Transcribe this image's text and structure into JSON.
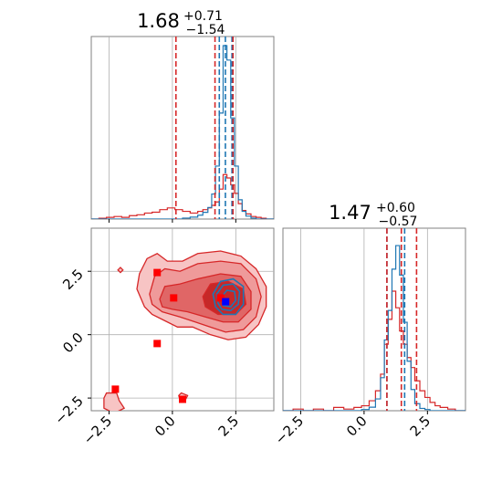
{
  "chart_data": {
    "type": "corner",
    "grid": true,
    "colors": {
      "primary": "#d62728",
      "secondary": "#1f77b4",
      "marker_primary": "#ff0000",
      "marker_secondary": "#0000ff",
      "grid": "#b0b0b0"
    },
    "parameters": [
      {
        "title": {
          "median": "1.68",
          "plus": "+0.71",
          "minus": "−1.54"
        }
      },
      {
        "title": {
          "median": "1.47",
          "plus": "+0.60",
          "minus": "−0.57"
        }
      }
    ],
    "xlim": [
      -3.2,
      4.0
    ],
    "ylim": [
      -3.0,
      4.2
    ],
    "ticks": [
      -2.5,
      0.0,
      2.5
    ],
    "tick_labels": [
      "−2.5",
      "0.0",
      "2.5"
    ],
    "marginal_1": {
      "bin_edges": [
        -3.2,
        -2.9,
        -2.6,
        -2.3,
        -2.0,
        -1.7,
        -1.4,
        -1.1,
        -0.8,
        -0.5,
        -0.2,
        0.1,
        0.4,
        0.7,
        1.0,
        1.2,
        1.4,
        1.55,
        1.7,
        1.85,
        2.0,
        2.15,
        2.3,
        2.45,
        2.6,
        2.75,
        2.9,
        3.1,
        3.3,
        3.5,
        3.7,
        4.0
      ],
      "red_counts": [
        0,
        1,
        2,
        3,
        2,
        4,
        5,
        7,
        8,
        11,
        13,
        11,
        9,
        7,
        9,
        11,
        13,
        16,
        20,
        35,
        52,
        48,
        40,
        30,
        18,
        10,
        6,
        3,
        2,
        1,
        0
      ],
      "blue_counts": [
        0,
        0,
        0,
        0,
        0,
        0,
        0,
        0,
        0,
        0,
        0,
        0,
        1,
        2,
        4,
        7,
        12,
        26,
        55,
        110,
        180,
        165,
        105,
        55,
        20,
        8,
        3,
        1,
        0,
        0,
        0
      ],
      "red_quantiles": [
        0.14,
        1.68,
        2.39
      ],
      "blue_quantiles": [
        1.85,
        2.09,
        2.35
      ]
    },
    "marginal_2": {
      "bin_edges": [
        -3.2,
        -2.8,
        -2.4,
        -2.0,
        -1.6,
        -1.2,
        -0.8,
        -0.4,
        -0.1,
        0.2,
        0.45,
        0.65,
        0.8,
        0.95,
        1.1,
        1.25,
        1.4,
        1.55,
        1.7,
        1.85,
        2.0,
        2.2,
        2.4,
        2.6,
        2.8,
        3.0,
        3.3,
        3.6,
        4.0
      ],
      "red_counts": [
        0,
        1,
        0,
        1,
        0,
        2,
        1,
        2,
        3,
        6,
        12,
        22,
        40,
        55,
        72,
        62,
        48,
        40,
        32,
        26,
        18,
        12,
        8,
        5,
        3,
        2,
        1,
        0
      ],
      "blue_counts": [
        0,
        0,
        0,
        0,
        0,
        0,
        0,
        0,
        1,
        3,
        10,
        28,
        60,
        85,
        120,
        140,
        115,
        75,
        42,
        18,
        6,
        2,
        1,
        0,
        0,
        0,
        0,
        0
      ],
      "red_quantiles": [
        0.9,
        1.47,
        2.07
      ],
      "blue_quantiles": [
        0.9,
        1.6,
        null
      ]
    },
    "joint": {
      "red_contours": [
        [
          [
            -1.4,
            1.8
          ],
          [
            -1.3,
            2.4
          ],
          [
            -1.0,
            3.0
          ],
          [
            -0.6,
            3.2
          ],
          [
            -0.2,
            2.9
          ],
          [
            0.4,
            2.9
          ],
          [
            1.0,
            3.2
          ],
          [
            1.9,
            3.3
          ],
          [
            2.7,
            3.1
          ],
          [
            3.3,
            2.6
          ],
          [
            3.7,
            1.9
          ],
          [
            3.7,
            1.1
          ],
          [
            3.4,
            0.4
          ],
          [
            2.9,
            -0.1
          ],
          [
            2.2,
            -0.2
          ],
          [
            1.5,
            0.0
          ],
          [
            0.8,
            0.3
          ],
          [
            0.2,
            0.3
          ],
          [
            -0.4,
            0.6
          ],
          [
            -0.8,
            0.8
          ],
          [
            -1.1,
            1.1
          ]
        ],
        [
          [
            -0.9,
            1.6
          ],
          [
            -0.7,
            2.3
          ],
          [
            -0.3,
            2.6
          ],
          [
            0.3,
            2.5
          ],
          [
            1.0,
            2.8
          ],
          [
            1.9,
            2.9
          ],
          [
            2.7,
            2.8
          ],
          [
            3.3,
            2.2
          ],
          [
            3.5,
            1.5
          ],
          [
            3.3,
            0.7
          ],
          [
            2.8,
            0.2
          ],
          [
            2.1,
            0.1
          ],
          [
            1.5,
            0.3
          ],
          [
            0.9,
            0.5
          ],
          [
            0.3,
            0.7
          ],
          [
            -0.4,
            0.9
          ],
          [
            -0.8,
            1.2
          ]
        ],
        [
          [
            -0.5,
            1.4
          ],
          [
            -0.3,
            1.9
          ],
          [
            0.3,
            2.0
          ],
          [
            1.0,
            2.2
          ],
          [
            1.9,
            2.4
          ],
          [
            2.7,
            2.3
          ],
          [
            3.1,
            1.7
          ],
          [
            3.1,
            1.0
          ],
          [
            2.6,
            0.5
          ],
          [
            2.0,
            0.5
          ],
          [
            1.3,
            0.7
          ],
          [
            0.6,
            0.9
          ],
          [
            0.0,
            1.0
          ],
          [
            -0.4,
            1.1
          ]
        ],
        [
          [
            1.2,
            1.5
          ],
          [
            1.5,
            2.0
          ],
          [
            2.2,
            2.1
          ],
          [
            2.8,
            1.8
          ],
          [
            2.9,
            1.2
          ],
          [
            2.5,
            0.8
          ],
          [
            1.8,
            0.8
          ],
          [
            1.3,
            1.1
          ]
        ],
        [
          [
            -2.7,
            -2.5
          ],
          [
            -2.6,
            -2.3
          ],
          [
            -2.2,
            -2.3
          ],
          [
            -2.1,
            -2.6
          ],
          [
            -1.9,
            -2.9
          ],
          [
            -2.3,
            -3.1
          ],
          [
            -2.7,
            -2.9
          ]
        ],
        [
          [
            0.25,
            -2.4
          ],
          [
            0.35,
            -2.3
          ],
          [
            0.6,
            -2.4
          ],
          [
            0.5,
            -2.6
          ],
          [
            0.3,
            -2.6
          ]
        ],
        [
          [
            -2.15,
            2.55
          ],
          [
            -2.05,
            2.65
          ],
          [
            -1.95,
            2.55
          ],
          [
            -2.05,
            2.45
          ]
        ]
      ],
      "blue_contours": [
        [
          [
            1.6,
            1.6
          ],
          [
            1.9,
            2.1
          ],
          [
            2.4,
            2.2
          ],
          [
            2.8,
            1.9
          ],
          [
            2.8,
            1.2
          ],
          [
            2.5,
            0.8
          ],
          [
            2.0,
            0.8
          ],
          [
            1.7,
            1.1
          ]
        ],
        [
          [
            1.75,
            1.6
          ],
          [
            2.0,
            1.95
          ],
          [
            2.4,
            2.0
          ],
          [
            2.65,
            1.7
          ],
          [
            2.6,
            1.2
          ],
          [
            2.3,
            0.95
          ],
          [
            1.95,
            1.0
          ],
          [
            1.8,
            1.25
          ]
        ],
        [
          [
            1.95,
            1.5
          ],
          [
            2.15,
            1.75
          ],
          [
            2.45,
            1.7
          ],
          [
            2.5,
            1.35
          ],
          [
            2.3,
            1.1
          ],
          [
            2.0,
            1.15
          ]
        ]
      ],
      "red_markers": [
        [
          -0.6,
          2.45
        ],
        [
          0.05,
          1.45
        ],
        [
          -0.6,
          -0.35
        ],
        [
          -2.25,
          -2.15
        ],
        [
          0.4,
          -2.55
        ],
        [
          1.9,
          1.45
        ]
      ],
      "blue_markers": [
        [
          2.1,
          1.3
        ]
      ]
    }
  }
}
